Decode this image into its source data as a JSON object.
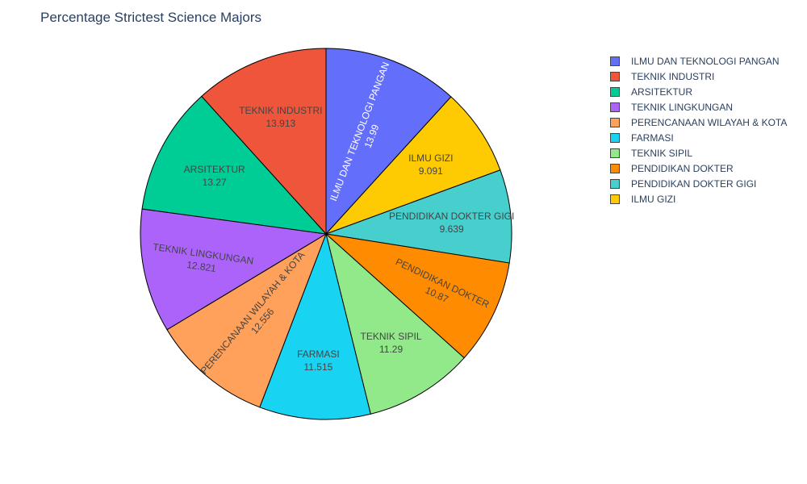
{
  "chart_data": {
    "type": "pie",
    "title": "Percentage Strictest Science Majors",
    "legend_position": "top-right",
    "slices": [
      {
        "label": "ILMU DAN TEKNOLOGI PANGAN",
        "value": 13.99,
        "display": "13.99",
        "color": "#636efa",
        "text_color": "#ffffff"
      },
      {
        "label": "ILMU GIZI",
        "value": 9.091,
        "display": "9.091",
        "color": "#fecb02",
        "text_color": "#444444"
      },
      {
        "label": "PENDIDIKAN DOKTER GIGI",
        "value": 9.639,
        "display": "9.639",
        "color": "#46cfcd",
        "text_color": "#444444"
      },
      {
        "label": "PENDIDIKAN DOKTER",
        "value": 10.87,
        "display": "10.87",
        "color": "#ff8c00",
        "text_color": "#444444"
      },
      {
        "label": "TEKNIK SIPIL",
        "value": 11.29,
        "display": "11.29",
        "color": "#92e98a",
        "text_color": "#444444"
      },
      {
        "label": "FARMASI",
        "value": 11.515,
        "display": "11.515",
        "color": "#19d3f3",
        "text_color": "#444444"
      },
      {
        "label": "PERENCANAAN WILAYAH & KOTA",
        "value": 12.556,
        "display": "12.556",
        "color": "#ffa15a",
        "text_color": "#444444"
      },
      {
        "label": "TEKNIK LINGKUNGAN",
        "value": 12.821,
        "display": "12.821",
        "color": "#ab63fa",
        "text_color": "#444444"
      },
      {
        "label": "ARSITEKTUR",
        "value": 13.27,
        "display": "13.27",
        "color": "#00cc96",
        "text_color": "#444444"
      },
      {
        "label": "TEKNIK INDUSTRI",
        "value": 13.913,
        "display": "13.913",
        "color": "#ef553b",
        "text_color": "#444444"
      }
    ],
    "legend_order": [
      "ILMU DAN TEKNOLOGI PANGAN",
      "TEKNIK INDUSTRI",
      "ARSITEKTUR",
      "TEKNIK LINGKUNGAN",
      "PERENCANAAN WILAYAH & KOTA",
      "FARMASI",
      "TEKNIK SIPIL",
      "PENDIDIKAN DOKTER",
      "PENDIDIKAN DOKTER GIGI",
      "ILMU GIZI"
    ]
  }
}
